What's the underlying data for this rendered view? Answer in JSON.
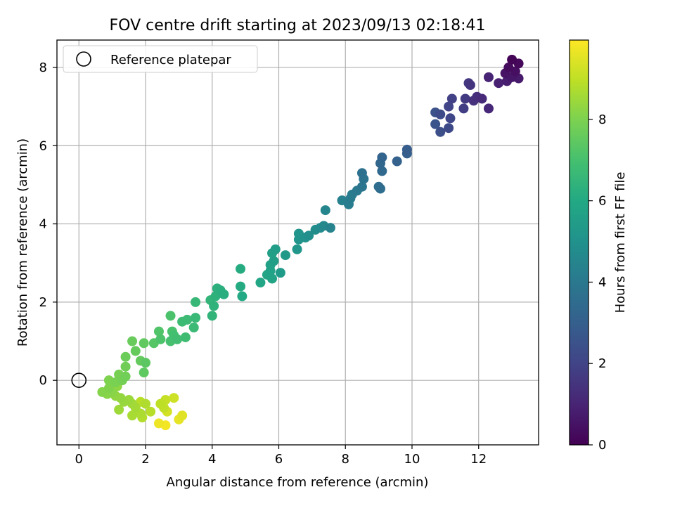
{
  "chart_data": {
    "type": "scatter",
    "title": "FOV centre drift starting at 2023/09/13 02:18:41",
    "xlabel": "Angular distance from reference (arcmin)",
    "ylabel": "Rotation from reference (arcmin)",
    "xlim": [
      -0.66,
      13.8
    ],
    "ylim": [
      -1.65,
      8.7
    ],
    "xticks": [
      0,
      2,
      4,
      6,
      8,
      10,
      12
    ],
    "yticks": [
      0,
      2,
      4,
      6,
      8
    ],
    "grid": true,
    "legend": {
      "position": "upper-left",
      "entries": [
        "Reference platepar"
      ]
    },
    "reference_point": {
      "x": 0,
      "y": 0,
      "marker": "open-circle",
      "label": "Reference platepar"
    },
    "colorbar": {
      "label": "Hours from first FF file",
      "colormap": "viridis",
      "range": [
        0,
        9.95
      ],
      "ticks": [
        0,
        2,
        4,
        6,
        8
      ]
    },
    "points": [
      {
        "x": 13.0,
        "y": 8.2,
        "h": 0.1
      },
      {
        "x": 13.2,
        "y": 8.1,
        "h": 0.2
      },
      {
        "x": 12.9,
        "y": 8.0,
        "h": 0.3
      },
      {
        "x": 13.1,
        "y": 7.9,
        "h": 0.4
      },
      {
        "x": 12.8,
        "y": 7.85,
        "h": 0.5
      },
      {
        "x": 13.0,
        "y": 7.75,
        "h": 0.6
      },
      {
        "x": 13.2,
        "y": 7.72,
        "h": 0.7
      },
      {
        "x": 12.85,
        "y": 7.65,
        "h": 0.8
      },
      {
        "x": 12.6,
        "y": 7.6,
        "h": 0.9
      },
      {
        "x": 12.3,
        "y": 7.75,
        "h": 1.0
      },
      {
        "x": 12.3,
        "y": 6.95,
        "h": 1.1
      },
      {
        "x": 12.1,
        "y": 7.2,
        "h": 1.2
      },
      {
        "x": 11.95,
        "y": 7.25,
        "h": 1.3
      },
      {
        "x": 11.85,
        "y": 7.15,
        "h": 1.4
      },
      {
        "x": 11.75,
        "y": 7.55,
        "h": 1.5
      },
      {
        "x": 11.7,
        "y": 7.6,
        "h": 1.6
      },
      {
        "x": 11.6,
        "y": 7.2,
        "h": 1.7
      },
      {
        "x": 11.55,
        "y": 6.95,
        "h": 1.8
      },
      {
        "x": 11.2,
        "y": 7.2,
        "h": 1.9
      },
      {
        "x": 11.1,
        "y": 7.0,
        "h": 2.0
      },
      {
        "x": 11.15,
        "y": 6.7,
        "h": 2.1
      },
      {
        "x": 11.1,
        "y": 6.45,
        "h": 2.2
      },
      {
        "x": 10.85,
        "y": 6.8,
        "h": 2.3
      },
      {
        "x": 10.85,
        "y": 6.35,
        "h": 2.4
      },
      {
        "x": 10.7,
        "y": 6.85,
        "h": 2.5
      },
      {
        "x": 10.7,
        "y": 6.55,
        "h": 2.6
      },
      {
        "x": 9.85,
        "y": 5.9,
        "h": 2.9
      },
      {
        "x": 9.85,
        "y": 5.8,
        "h": 3.0
      },
      {
        "x": 9.55,
        "y": 5.6,
        "h": 3.1
      },
      {
        "x": 9.1,
        "y": 5.7,
        "h": 3.2
      },
      {
        "x": 9.05,
        "y": 5.55,
        "h": 3.3
      },
      {
        "x": 9.1,
        "y": 5.35,
        "h": 3.4
      },
      {
        "x": 9.0,
        "y": 4.95,
        "h": 3.5
      },
      {
        "x": 9.05,
        "y": 4.9,
        "h": 3.6
      },
      {
        "x": 8.5,
        "y": 5.3,
        "h": 3.7
      },
      {
        "x": 8.55,
        "y": 5.15,
        "h": 3.8
      },
      {
        "x": 8.5,
        "y": 4.95,
        "h": 3.9
      },
      {
        "x": 8.35,
        "y": 4.85,
        "h": 4.0
      },
      {
        "x": 8.2,
        "y": 4.75,
        "h": 4.1
      },
      {
        "x": 8.15,
        "y": 4.65,
        "h": 4.15
      },
      {
        "x": 8.1,
        "y": 4.5,
        "h": 4.2
      },
      {
        "x": 7.9,
        "y": 4.6,
        "h": 4.3
      },
      {
        "x": 7.55,
        "y": 3.9,
        "h": 4.4
      },
      {
        "x": 7.4,
        "y": 4.35,
        "h": 4.5
      },
      {
        "x": 7.35,
        "y": 3.95,
        "h": 4.6
      },
      {
        "x": 7.25,
        "y": 3.9,
        "h": 4.7
      },
      {
        "x": 7.1,
        "y": 3.85,
        "h": 4.8
      },
      {
        "x": 6.9,
        "y": 3.7,
        "h": 4.9
      },
      {
        "x": 6.8,
        "y": 3.65,
        "h": 5.0
      },
      {
        "x": 6.6,
        "y": 3.75,
        "h": 5.1
      },
      {
        "x": 6.6,
        "y": 3.6,
        "h": 5.15
      },
      {
        "x": 6.55,
        "y": 3.35,
        "h": 5.2
      },
      {
        "x": 6.2,
        "y": 3.2,
        "h": 5.3
      },
      {
        "x": 6.05,
        "y": 2.75,
        "h": 5.4
      },
      {
        "x": 5.9,
        "y": 3.35,
        "h": 5.5
      },
      {
        "x": 5.85,
        "y": 3.05,
        "h": 5.55
      },
      {
        "x": 5.8,
        "y": 3.25,
        "h": 5.6
      },
      {
        "x": 5.75,
        "y": 2.95,
        "h": 5.65
      },
      {
        "x": 5.75,
        "y": 2.8,
        "h": 5.7
      },
      {
        "x": 5.8,
        "y": 2.6,
        "h": 5.75
      },
      {
        "x": 5.65,
        "y": 2.7,
        "h": 5.8
      },
      {
        "x": 5.45,
        "y": 2.5,
        "h": 5.9
      },
      {
        "x": 4.9,
        "y": 2.15,
        "h": 6.0
      },
      {
        "x": 4.85,
        "y": 2.4,
        "h": 6.05
      },
      {
        "x": 4.85,
        "y": 2.85,
        "h": 6.1
      },
      {
        "x": 4.35,
        "y": 2.2,
        "h": 6.2
      },
      {
        "x": 4.25,
        "y": 2.3,
        "h": 6.25
      },
      {
        "x": 4.15,
        "y": 2.35,
        "h": 6.3
      },
      {
        "x": 4.1,
        "y": 2.15,
        "h": 6.35
      },
      {
        "x": 4.05,
        "y": 1.9,
        "h": 6.4
      },
      {
        "x": 4.0,
        "y": 1.65,
        "h": 6.45
      },
      {
        "x": 3.95,
        "y": 2.05,
        "h": 6.5
      },
      {
        "x": 3.5,
        "y": 2.0,
        "h": 6.6
      },
      {
        "x": 3.5,
        "y": 1.6,
        "h": 6.65
      },
      {
        "x": 3.45,
        "y": 1.35,
        "h": 6.7
      },
      {
        "x": 3.25,
        "y": 1.55,
        "h": 6.75
      },
      {
        "x": 3.1,
        "y": 1.5,
        "h": 6.8
      },
      {
        "x": 3.2,
        "y": 1.1,
        "h": 6.85
      },
      {
        "x": 2.95,
        "y": 1.05,
        "h": 6.9
      },
      {
        "x": 2.85,
        "y": 1.15,
        "h": 6.95
      },
      {
        "x": 2.75,
        "y": 1.0,
        "h": 7.0
      },
      {
        "x": 2.8,
        "y": 1.25,
        "h": 7.05
      },
      {
        "x": 2.75,
        "y": 1.65,
        "h": 7.1
      },
      {
        "x": 2.45,
        "y": 1.05,
        "h": 7.15
      },
      {
        "x": 2.4,
        "y": 1.25,
        "h": 7.2
      },
      {
        "x": 2.25,
        "y": 0.95,
        "h": 7.3
      },
      {
        "x": 2.0,
        "y": 0.45,
        "h": 7.4
      },
      {
        "x": 1.95,
        "y": 0.2,
        "h": 7.45
      },
      {
        "x": 1.95,
        "y": 0.95,
        "h": 7.5
      },
      {
        "x": 1.85,
        "y": 0.5,
        "h": 7.55
      },
      {
        "x": 1.7,
        "y": 0.75,
        "h": 7.6
      },
      {
        "x": 1.6,
        "y": 1.0,
        "h": 7.65
      },
      {
        "x": 1.4,
        "y": 0.6,
        "h": 7.7
      },
      {
        "x": 1.4,
        "y": 0.35,
        "h": 7.75
      },
      {
        "x": 1.4,
        "y": 0.1,
        "h": 7.8
      },
      {
        "x": 1.3,
        "y": 0.0,
        "h": 7.85
      },
      {
        "x": 1.2,
        "y": 0.15,
        "h": 7.9
      },
      {
        "x": 1.1,
        "y": -0.05,
        "h": 7.95
      },
      {
        "x": 0.9,
        "y": 0.0,
        "h": 8.0
      },
      {
        "x": 0.9,
        "y": -0.2,
        "h": 8.05
      },
      {
        "x": 0.7,
        "y": -0.3,
        "h": 8.1
      },
      {
        "x": 0.85,
        "y": -0.35,
        "h": 8.15
      },
      {
        "x": 1.0,
        "y": -0.3,
        "h": 8.2
      },
      {
        "x": 1.15,
        "y": -0.15,
        "h": 8.25
      },
      {
        "x": 1.1,
        "y": -0.4,
        "h": 8.3
      },
      {
        "x": 1.25,
        "y": -0.45,
        "h": 8.35
      },
      {
        "x": 1.35,
        "y": -0.55,
        "h": 8.4
      },
      {
        "x": 1.5,
        "y": -0.5,
        "h": 8.45
      },
      {
        "x": 1.2,
        "y": -0.75,
        "h": 8.5
      },
      {
        "x": 1.6,
        "y": -0.6,
        "h": 8.55
      },
      {
        "x": 1.7,
        "y": -0.7,
        "h": 8.6
      },
      {
        "x": 1.6,
        "y": -0.9,
        "h": 8.65
      },
      {
        "x": 1.85,
        "y": -0.85,
        "h": 8.7
      },
      {
        "x": 2.0,
        "y": -0.6,
        "h": 8.75
      },
      {
        "x": 1.9,
        "y": -0.95,
        "h": 8.8
      },
      {
        "x": 2.15,
        "y": -0.8,
        "h": 8.85
      },
      {
        "x": 1.85,
        "y": -0.55,
        "h": 8.9
      },
      {
        "x": 2.45,
        "y": -0.6,
        "h": 8.95
      },
      {
        "x": 2.55,
        "y": -0.7,
        "h": 9.0
      },
      {
        "x": 2.6,
        "y": -0.5,
        "h": 9.1
      },
      {
        "x": 2.85,
        "y": -0.45,
        "h": 9.2
      },
      {
        "x": 2.65,
        "y": -0.8,
        "h": 9.3
      },
      {
        "x": 3.1,
        "y": -0.9,
        "h": 9.5
      },
      {
        "x": 3.0,
        "y": -1.0,
        "h": 9.6
      },
      {
        "x": 2.4,
        "y": -1.1,
        "h": 9.7
      },
      {
        "x": 2.6,
        "y": -1.15,
        "h": 9.8
      }
    ]
  }
}
